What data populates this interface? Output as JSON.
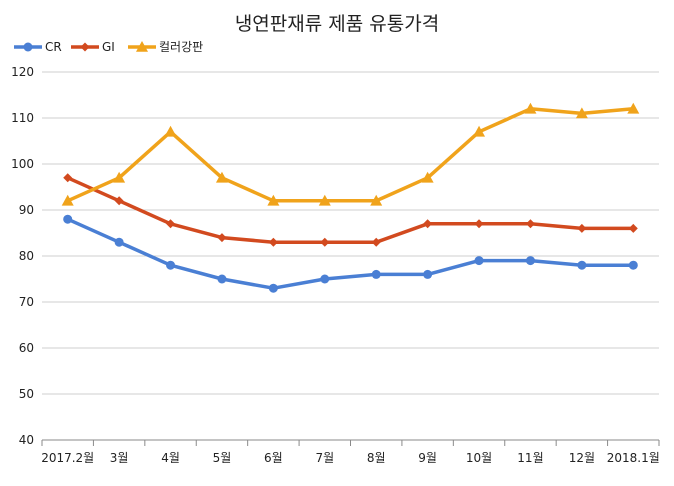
{
  "chart_data": {
    "type": "line",
    "title": "냉연판재류 제품 유통가격",
    "xlabel": "",
    "ylabel": "",
    "ylim": [
      40,
      120
    ],
    "yticks": [
      40,
      50,
      60,
      70,
      80,
      90,
      100,
      110,
      120
    ],
    "grid": true,
    "legend_position": "top-left",
    "categories": [
      "2017.2월",
      "3월",
      "4월",
      "5월",
      "6월",
      "7월",
      "8월",
      "9월",
      "10월",
      "11월",
      "12월",
      "2018.1월"
    ],
    "series": [
      {
        "name": "CR",
        "color": "#4a7fd4",
        "marker": "circle",
        "values": [
          88,
          83,
          78,
          75,
          73,
          75,
          76,
          76,
          79,
          79,
          78,
          78
        ]
      },
      {
        "name": "GI",
        "color": "#d24a1f",
        "marker": "diamond",
        "values": [
          97,
          92,
          87,
          84,
          83,
          83,
          83,
          87,
          87,
          87,
          86,
          86
        ]
      },
      {
        "name": "컬러강판",
        "color": "#f0a31b",
        "marker": "triangle",
        "values": [
          92,
          97,
          107,
          97,
          92,
          92,
          92,
          97,
          107,
          112,
          111,
          112
        ]
      }
    ]
  }
}
